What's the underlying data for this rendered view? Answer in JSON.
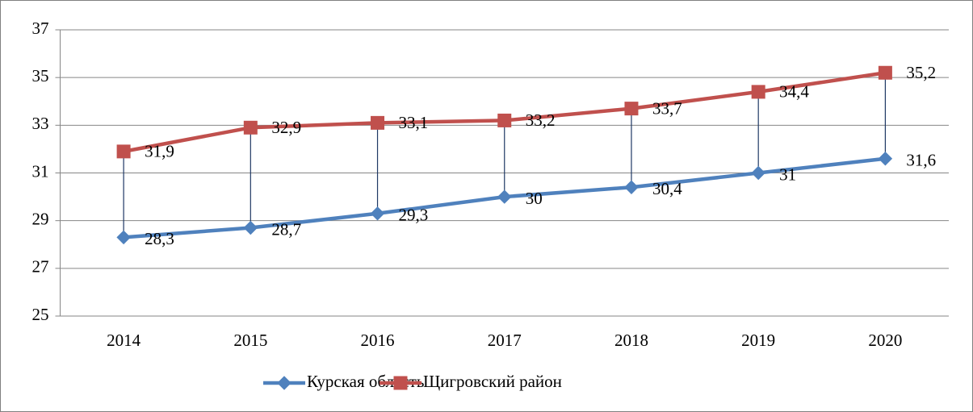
{
  "chart_data": {
    "type": "line",
    "categories": [
      "2014",
      "2015",
      "2016",
      "2017",
      "2018",
      "2019",
      "2020"
    ],
    "series": [
      {
        "name": "Курская область",
        "color": "#4f81bd",
        "marker": "diamond",
        "values": [
          28.3,
          28.7,
          29.3,
          30,
          30.4,
          31,
          31.6
        ],
        "value_labels": [
          "28,3",
          "28,7",
          "29,3",
          "30",
          "30,4",
          "31",
          "31,6"
        ]
      },
      {
        "name": "Щигровский район",
        "color": "#c0504d",
        "marker": "square",
        "values": [
          31.9,
          32.9,
          33.1,
          33.2,
          33.7,
          34.4,
          35.2
        ],
        "value_labels": [
          "31,9",
          "32,9",
          "33,1",
          "33,2",
          "33,7",
          "34,4",
          "35,2"
        ]
      }
    ],
    "ylim": [
      25,
      37
    ],
    "yticks": [
      25,
      27,
      29,
      31,
      33,
      35,
      37
    ],
    "grid": true,
    "high_low_lines": true,
    "legend": "bottom"
  }
}
